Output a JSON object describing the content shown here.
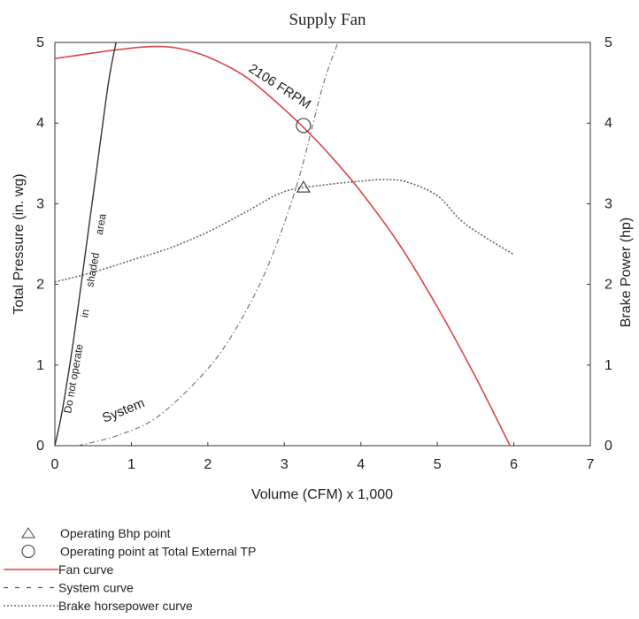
{
  "chart_data": {
    "type": "line",
    "title": "Supply Fan",
    "xlabel": "Volume (CFM) x 1,000",
    "ylabel": "Total Pressure (in. wg)",
    "ylabel_right": "Brake Power (hp)",
    "xlim": [
      0,
      7
    ],
    "ylim": [
      0,
      5
    ],
    "ylim_right": [
      0,
      5
    ],
    "x_ticks": [
      "0",
      "1",
      "2",
      "3",
      "4",
      "5",
      "6",
      "7"
    ],
    "y_ticks": [
      "0",
      "1",
      "2",
      "3",
      "4",
      "5"
    ],
    "y_ticks_right": [
      "0",
      "1",
      "2",
      "3",
      "4",
      "5"
    ],
    "grid": false,
    "legend_position": "bottom-left",
    "series": [
      {
        "key": "fan",
        "color": "#d9464b",
        "style": "solid",
        "x": [
          0,
          0.5,
          1,
          1.3,
          1.6,
          2,
          2.5,
          3,
          3.3,
          3.6,
          4,
          4.5,
          5,
          5.5,
          5.95
        ],
        "y": [
          4.8,
          4.87,
          4.93,
          4.95,
          4.93,
          4.82,
          4.57,
          4.17,
          3.9,
          3.6,
          3.15,
          2.5,
          1.72,
          0.85,
          0
        ]
      },
      {
        "key": "system",
        "color": "#777777",
        "style": "dashdot",
        "x": [
          0.3,
          0.8,
          1.3,
          1.8,
          2.2,
          2.6,
          2.9,
          3.2,
          3.5,
          3.7
        ],
        "y": [
          0,
          0.12,
          0.33,
          0.75,
          1.2,
          1.85,
          2.5,
          3.35,
          4.45,
          5.0
        ]
      },
      {
        "key": "bhp",
        "color": "#666666",
        "style": "dotted",
        "x": [
          0,
          0.5,
          1,
          1.5,
          2,
          2.5,
          3,
          3.5,
          4,
          4.3,
          4.6,
          5,
          5.3,
          5.6,
          6.0
        ],
        "y": [
          2.03,
          2.15,
          2.3,
          2.45,
          2.65,
          2.9,
          3.15,
          3.23,
          3.28,
          3.3,
          3.27,
          3.1,
          2.8,
          2.6,
          2.37
        ]
      },
      {
        "key": "surge",
        "color": "#333333",
        "style": "solid",
        "x": [
          0,
          0.1,
          0.25,
          0.4,
          0.55,
          0.7,
          0.8
        ],
        "y": [
          0,
          0.45,
          1.35,
          2.4,
          3.45,
          4.5,
          5.0
        ]
      }
    ],
    "points": [
      {
        "name": "Operating Bhp point",
        "marker": "triangle",
        "x": 3.25,
        "y": 3.2
      },
      {
        "name": "Operating point at Total External TP",
        "marker": "circle",
        "x": 3.25,
        "y": 3.97
      }
    ],
    "annotations": {
      "fan_speed": "2106 FRPM",
      "system": "System",
      "surge_1": "Do not operate",
      "surge_2": "in",
      "surge_3": "shaded",
      "surge_4": "area"
    },
    "legend": [
      {
        "symbol": "triangle",
        "label": "Operating Bhp point"
      },
      {
        "symbol": "circle",
        "label": "Operating point at Total External TP"
      },
      {
        "symbol": "fan-line",
        "label": "Fan curve"
      },
      {
        "symbol": "system-line",
        "label": "System curve"
      },
      {
        "symbol": "bhp-line",
        "label": "Brake horsepower curve"
      }
    ]
  }
}
